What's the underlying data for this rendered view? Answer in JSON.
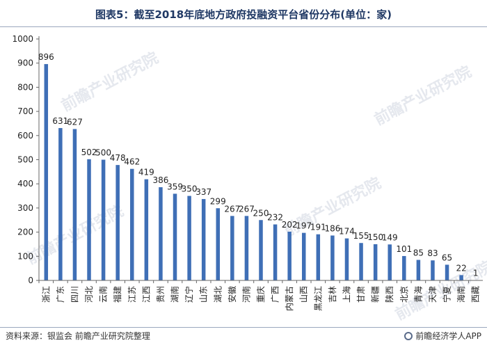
{
  "title": "图表5：截至2018年底地方政府投融资平台省份分布(单位：家)",
  "source": "资料来源：银监会 前瞻产业研究院整理",
  "brand": "前瞻经济学人APP",
  "watermark": "前瞻产业研究院",
  "colors": {
    "bar": "#3f6fb6",
    "axis": "#666666",
    "text": "#222222"
  },
  "chart_data": {
    "type": "bar",
    "title": "图表5：截至2018年底地方政府投融资平台省份分布(单位：家)",
    "xlabel": "",
    "ylabel": "",
    "ylim": [
      0,
      1000
    ],
    "yticks": [
      0,
      100,
      200,
      300,
      400,
      500,
      600,
      700,
      800,
      900,
      1000
    ],
    "grid": false,
    "categories": [
      "浙江",
      "广东",
      "四川",
      "河北",
      "云南",
      "福建",
      "江苏",
      "江西",
      "贵州",
      "湖南",
      "辽宁",
      "山东",
      "湖北",
      "安徽",
      "河南",
      "重庆",
      "广西",
      "内蒙古",
      "山西",
      "黑龙江",
      "吉林",
      "上海",
      "甘肃",
      "新疆",
      "陕西",
      "北京",
      "青海",
      "天津",
      "宁夏",
      "海南",
      "西藏"
    ],
    "values": [
      896,
      631,
      627,
      502,
      500,
      478,
      462,
      419,
      386,
      359,
      350,
      337,
      299,
      267,
      267,
      250,
      232,
      202,
      197,
      191,
      186,
      174,
      155,
      150,
      149,
      101,
      85,
      83,
      65,
      22,
      1
    ]
  }
}
